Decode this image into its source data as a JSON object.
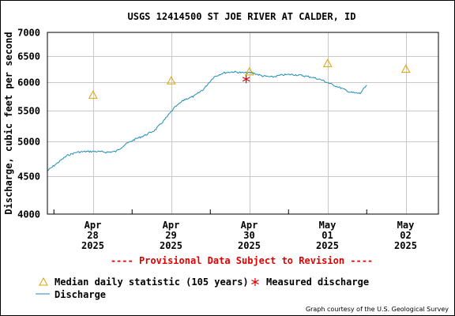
{
  "colors": {
    "discharge": "#1f8db5",
    "median": "#e0a000",
    "measured": "#e00000",
    "grid": "#c8c8c8",
    "provisional": "#e00000"
  },
  "chart_data": {
    "type": "line",
    "title": "USGS 12414500 ST JOE RIVER AT CALDER, ID",
    "ylabel": "Discharge, cubic feet per second",
    "xlabel": "",
    "y_scale": "log",
    "ylim": [
      4000,
      7000
    ],
    "y_ticks": [
      4000,
      4500,
      5000,
      5500,
      6000,
      6500,
      7000
    ],
    "xlim": [
      "2025-04-27T22:00",
      "2025-05-02T22:00"
    ],
    "x_ticks": [
      {
        "x": "2025-04-28T12:00",
        "month": "Apr",
        "day": "28",
        "year": "2025"
      },
      {
        "x": "2025-04-29T12:00",
        "month": "Apr",
        "day": "29",
        "year": "2025"
      },
      {
        "x": "2025-04-30T12:00",
        "month": "Apr",
        "day": "30",
        "year": "2025"
      },
      {
        "x": "2025-05-01T12:00",
        "month": "May",
        "day": "01",
        "year": "2025"
      },
      {
        "x": "2025-05-02T12:00",
        "month": "May",
        "day": "02",
        "year": "2025"
      }
    ],
    "grid": true,
    "discharge": {
      "name": "Discharge",
      "x": [
        "2025-04-27T22:00",
        "2025-04-28T01:00",
        "2025-04-28T04:00",
        "2025-04-28T07:00",
        "2025-04-28T10:00",
        "2025-04-28T13:00",
        "2025-04-28T16:00",
        "2025-04-28T19:00",
        "2025-04-28T22:00",
        "2025-04-29T01:00",
        "2025-04-29T04:00",
        "2025-04-29T07:00",
        "2025-04-29T10:00",
        "2025-04-29T13:00",
        "2025-04-29T16:00",
        "2025-04-29T19:00",
        "2025-04-29T22:00",
        "2025-04-30T01:00",
        "2025-04-30T04:00",
        "2025-04-30T07:00",
        "2025-04-30T10:00",
        "2025-04-30T13:00",
        "2025-04-30T16:00",
        "2025-04-30T19:00",
        "2025-04-30T22:00",
        "2025-05-01T01:00",
        "2025-05-01T04:00",
        "2025-05-01T07:00",
        "2025-05-01T10:00",
        "2025-05-01T13:00",
        "2025-05-01T16:00",
        "2025-05-01T19:00",
        "2025-05-01T22:00",
        "2025-05-02T00:00"
      ],
      "y": [
        4570,
        4680,
        4790,
        4840,
        4850,
        4850,
        4840,
        4850,
        4960,
        5040,
        5100,
        5180,
        5350,
        5550,
        5690,
        5750,
        5880,
        6100,
        6180,
        6200,
        6180,
        6180,
        6120,
        6100,
        6140,
        6150,
        6130,
        6100,
        6050,
        5970,
        5900,
        5820,
        5800,
        5950
      ]
    },
    "median": {
      "name": "Median daily statistic (105 years)",
      "x": [
        "2025-04-28T12:00",
        "2025-04-29T12:00",
        "2025-04-30T12:00",
        "2025-05-01T12:00",
        "2025-05-02T12:00"
      ],
      "y": [
        5770,
        6030,
        6200,
        6360,
        6250
      ]
    },
    "measured": {
      "name": "Measured discharge",
      "x": [
        "2025-04-30T11:00"
      ],
      "y": [
        6060
      ]
    },
    "provisional_note": "---- Provisional Data Subject to Revision ----",
    "credit": "Graph courtesy of the U.S. Geological Survey"
  }
}
